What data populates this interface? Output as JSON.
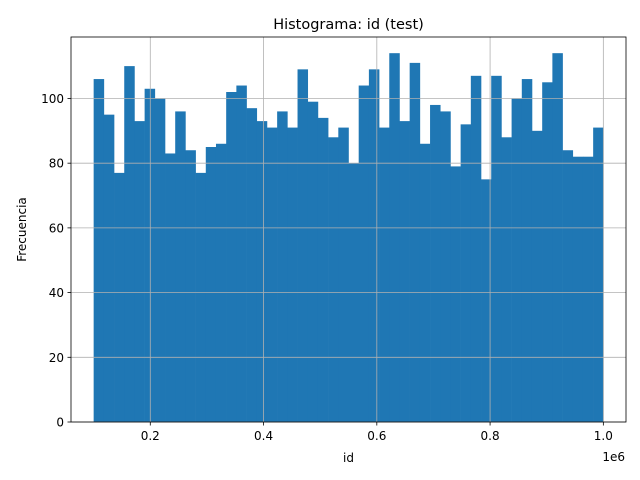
{
  "chart_data": {
    "type": "bar",
    "title": "Histograma: id (test)",
    "xlabel": "id",
    "ylabel": "Frecuencia",
    "x_offset_label": "1e6",
    "x_range_scaled": [
      0.1,
      1.0
    ],
    "xlim": [
      0.06,
      1.04
    ],
    "ylim": [
      0,
      119
    ],
    "xticks": [
      "0.2",
      "0.4",
      "0.6",
      "0.8",
      "1.0"
    ],
    "yticks": [
      "0",
      "20",
      "40",
      "60",
      "80",
      "100"
    ],
    "grid": true,
    "bar_color": "#1f77b4",
    "bins": 50,
    "values": [
      106,
      95,
      77,
      110,
      93,
      103,
      100,
      83,
      96,
      84,
      77,
      85,
      86,
      102,
      104,
      97,
      93,
      91,
      96,
      91,
      109,
      99,
      94,
      88,
      91,
      80,
      104,
      109,
      91,
      114,
      93,
      111,
      86,
      98,
      96,
      79,
      92,
      107,
      75,
      107,
      88,
      100,
      106,
      90,
      105,
      114,
      84,
      82,
      82,
      91
    ]
  }
}
